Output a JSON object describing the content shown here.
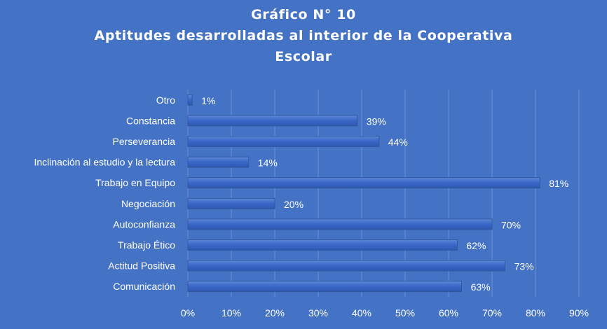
{
  "chart_data": {
    "type": "bar",
    "orientation": "horizontal",
    "title_lines": [
      "Gráfico N° 10",
      "Aptitudes desarrolladas al interior de la Cooperativa",
      "Escolar"
    ],
    "categories": [
      "Otro",
      "Constancia",
      "Perseverancia",
      "Inclinación al estudio y la lectura",
      "Trabajo en Equipo",
      "Negociación",
      "Autoconfianza",
      "Trabajo Ético",
      "Actitud Positiva",
      "Comunicación"
    ],
    "values": [
      1,
      39,
      44,
      14,
      81,
      20,
      70,
      62,
      73,
      63
    ],
    "value_labels": [
      "1%",
      "39%",
      "44%",
      "14%",
      "81%",
      "20%",
      "70%",
      "62%",
      "73%",
      "63%"
    ],
    "x_ticks": [
      "0%",
      "10%",
      "20%",
      "30%",
      "40%",
      "50%",
      "60%",
      "70%",
      "80%",
      "90%"
    ],
    "xlim": [
      0,
      90
    ],
    "grid": true,
    "legend": "none",
    "colors": {
      "background": "#4472C4",
      "bar": "#3A66C8",
      "bar_edge": "#2F5597",
      "text": "#FFFFFF",
      "grid": "#6C8FD3"
    }
  }
}
